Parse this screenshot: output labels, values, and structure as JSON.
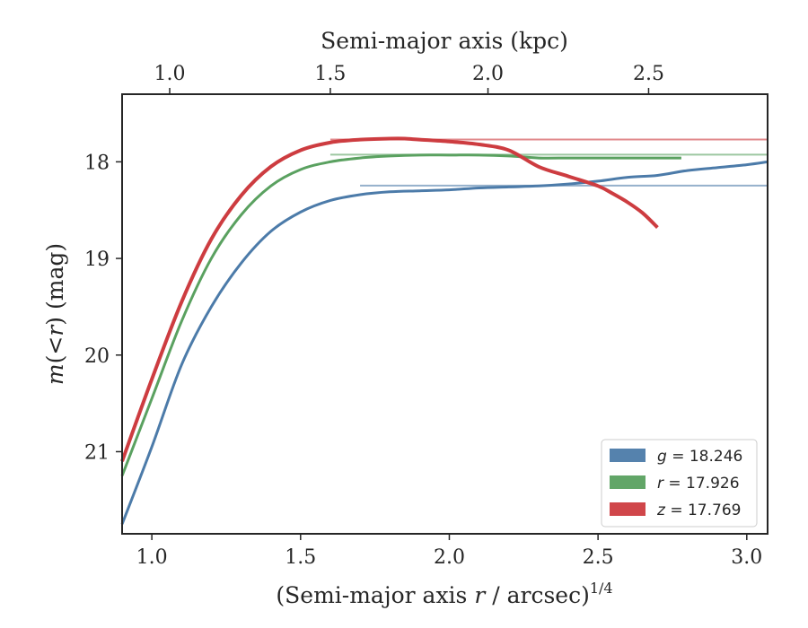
{
  "chart_data": {
    "type": "line",
    "xlabel": "(Semi-major axis ",
    "xlabel_var": "r",
    "xlabel_unit": " / arcsec)",
    "xlabel_power": "1/4",
    "ylabel_prefix": "m(<",
    "ylabel_var": "r",
    "ylabel_suffix": ") (mag)",
    "x2label": "Semi-major axis (kpc)",
    "xlim": [
      0.9,
      3.07
    ],
    "ylim": [
      21.85,
      17.3
    ],
    "y_inverted": true,
    "grid": false,
    "legend_position": "lower-right",
    "x_ticks": [
      1.0,
      1.5,
      2.0,
      2.5,
      3.0
    ],
    "x_tick_labels": [
      "1.0",
      "1.5",
      "2.0",
      "2.5",
      "3.0"
    ],
    "y_ticks": [
      18,
      19,
      20,
      21
    ],
    "y_tick_labels": [
      "18",
      "19",
      "20",
      "21"
    ],
    "x2_ticks": [
      1.0,
      1.5,
      2.0,
      2.5
    ],
    "x2_tick_labels": [
      "1.0",
      "1.5",
      "2.0",
      "2.5"
    ],
    "x2_tick_positions": [
      1.06,
      1.6,
      2.13,
      2.67
    ],
    "series": [
      {
        "name": "g = 18.246",
        "legend_var": "g",
        "legend_value": "18.246",
        "color": "#4c7ba9",
        "asymptote": 18.246,
        "x": [
          0.9,
          1.0,
          1.1,
          1.2,
          1.3,
          1.4,
          1.5,
          1.6,
          1.7,
          1.8,
          1.9,
          2.0,
          2.1,
          2.2,
          2.3,
          2.4,
          2.5,
          2.6,
          2.7,
          2.8,
          2.9,
          3.0,
          3.07
        ],
        "y": [
          21.75,
          20.95,
          20.1,
          19.5,
          19.05,
          18.72,
          18.52,
          18.4,
          18.34,
          18.31,
          18.3,
          18.29,
          18.27,
          18.26,
          18.25,
          18.23,
          18.2,
          18.16,
          18.14,
          18.09,
          18.06,
          18.03,
          18.0
        ]
      },
      {
        "name": "r = 17.926",
        "legend_var": "r",
        "legend_value": "17.926",
        "color": "#5aa160",
        "asymptote": 17.926,
        "x": [
          0.9,
          1.0,
          1.1,
          1.2,
          1.3,
          1.4,
          1.5,
          1.6,
          1.7,
          1.8,
          1.9,
          2.0,
          2.1,
          2.2,
          2.3,
          2.4,
          2.5,
          2.6,
          2.7,
          2.78
        ],
        "y": [
          21.25,
          20.45,
          19.65,
          19.0,
          18.55,
          18.25,
          18.08,
          18.0,
          17.96,
          17.94,
          17.93,
          17.93,
          17.93,
          17.94,
          17.96,
          17.96,
          17.96,
          17.96,
          17.96,
          17.96
        ]
      },
      {
        "name": "z = 17.769",
        "legend_var": "z",
        "legend_value": "17.769",
        "color": "#cd3c40",
        "asymptote": 17.769,
        "x": [
          0.9,
          1.0,
          1.1,
          1.2,
          1.3,
          1.4,
          1.5,
          1.6,
          1.7,
          1.8,
          1.85,
          1.9,
          2.0,
          2.1,
          2.2,
          2.3,
          2.4,
          2.5,
          2.55,
          2.6,
          2.65,
          2.7
        ],
        "y": [
          21.1,
          20.25,
          19.45,
          18.8,
          18.35,
          18.05,
          17.88,
          17.8,
          17.77,
          17.76,
          17.76,
          17.77,
          17.79,
          17.82,
          17.88,
          18.05,
          18.15,
          18.25,
          18.33,
          18.42,
          18.53,
          18.68
        ]
      }
    ]
  }
}
